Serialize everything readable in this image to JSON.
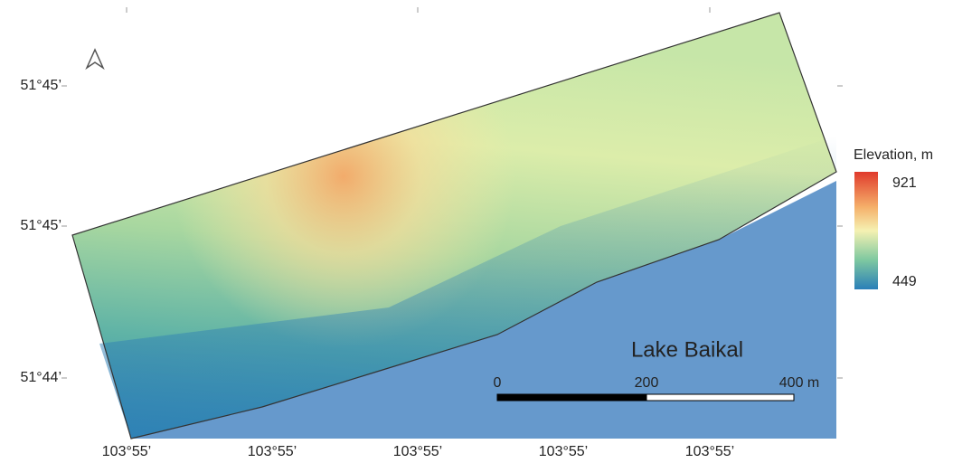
{
  "map": {
    "latitude_labels": [
      "51°45’",
      "51°45’",
      "51°44’"
    ],
    "longitude_labels": [
      "103°55’",
      "103°55’",
      "103°55’",
      "103°55’",
      "103°55’"
    ],
    "water_label": "Lake Baikal",
    "legend": {
      "title": "Elevation, m",
      "max": 921,
      "min": 449
    },
    "scale_bar": {
      "labels": [
        "0",
        "200",
        "400 m"
      ]
    }
  }
}
